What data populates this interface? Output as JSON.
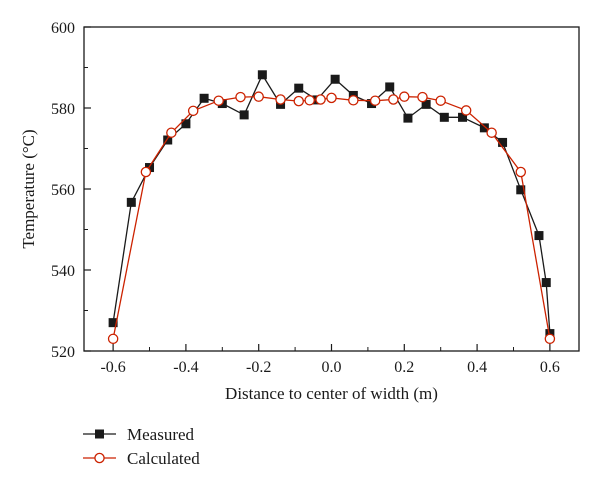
{
  "chart_data": {
    "type": "line",
    "xlabel": "Distance to center of width (m)",
    "ylabel": "Temperature (°C)",
    "xlim": [
      -0.68,
      0.68
    ],
    "ylim": [
      520,
      600
    ],
    "xticks": [
      -0.6,
      -0.4,
      -0.2,
      0.0,
      0.2,
      0.4,
      0.6
    ],
    "xtick_labels": [
      "-0.6",
      "-0.4",
      "-0.2",
      "0.0",
      "0.2",
      "0.4",
      "0.6"
    ],
    "yticks": [
      520,
      540,
      560,
      580,
      600
    ],
    "ytick_labels": [
      "520",
      "540",
      "560",
      "580",
      "600"
    ],
    "grid": false,
    "legend_position": "bottom-left, below plot",
    "series": [
      {
        "name": "Measured",
        "color": "#1a1a1a",
        "marker": "filled-square",
        "x": [
          -0.6,
          -0.55,
          -0.5,
          -0.45,
          -0.4,
          -0.35,
          -0.3,
          -0.24,
          -0.19,
          -0.14,
          -0.09,
          -0.04,
          0.01,
          0.06,
          0.11,
          0.16,
          0.21,
          0.26,
          0.31,
          0.36,
          0.42,
          0.47,
          0.52,
          0.57,
          0.59,
          0.6
        ],
        "y": [
          527,
          556.7,
          565.3,
          572.1,
          576.1,
          582.4,
          581.1,
          578.3,
          588.2,
          580.9,
          584.9,
          582,
          587.1,
          583.1,
          581.1,
          585.2,
          577.5,
          580.9,
          577.7,
          577.7,
          575.1,
          571.5,
          559.8,
          548.5,
          536.9,
          524.3
        ]
      },
      {
        "name": "Calculated",
        "color": "#cc2200",
        "marker": "open-circle",
        "x": [
          -0.6,
          -0.51,
          -0.44,
          -0.38,
          -0.31,
          -0.25,
          -0.2,
          -0.14,
          -0.09,
          -0.06,
          -0.03,
          0.0,
          0.06,
          0.12,
          0.17,
          0.2,
          0.25,
          0.3,
          0.37,
          0.44,
          0.52,
          0.6
        ],
        "y": [
          523,
          564.2,
          573.9,
          579.3,
          581.8,
          582.7,
          582.8,
          582.1,
          581.7,
          581.9,
          582.1,
          582.5,
          581.9,
          581.8,
          582.1,
          582.8,
          582.7,
          581.8,
          579.4,
          573.9,
          564.2,
          523
        ]
      }
    ]
  }
}
